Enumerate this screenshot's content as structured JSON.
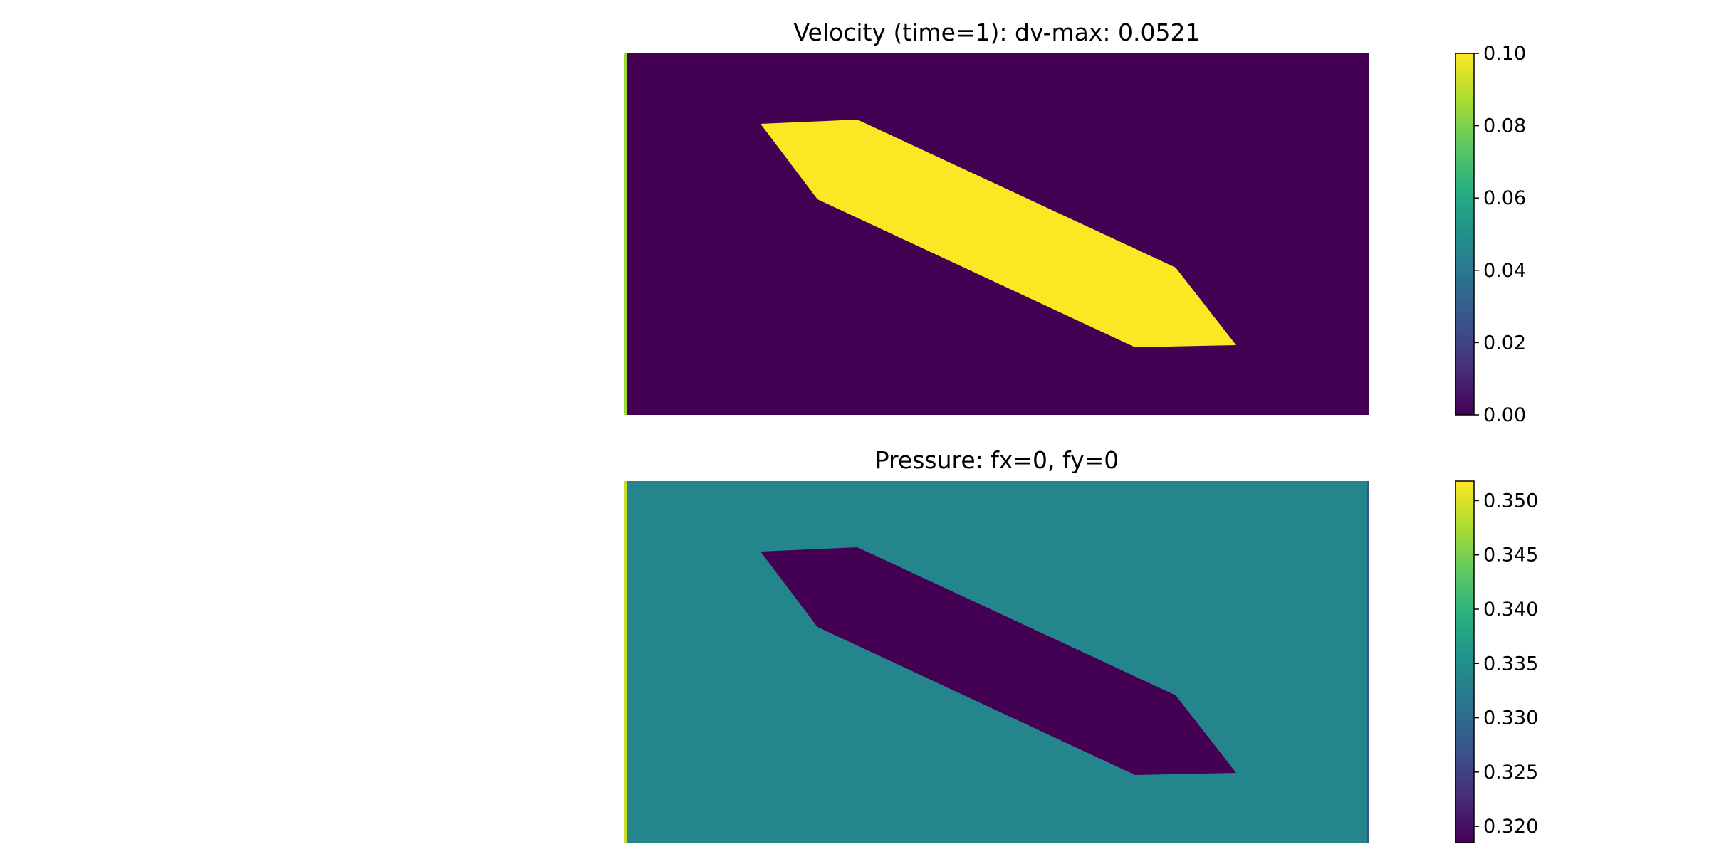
{
  "chart_data": [
    {
      "type": "heatmap",
      "title": "Velocity (time=1): dv-max: 0.0521",
      "colormap": "viridis",
      "field": {
        "background_value": 0.0,
        "obstacle_value": 0.1,
        "inlet_edge_value": 0.085
      },
      "colorbar": {
        "range": [
          0.0,
          0.1
        ],
        "ticks": [
          0.0,
          0.02,
          0.04,
          0.06,
          0.08,
          0.1
        ],
        "tick_labels": [
          "0.00",
          "0.02",
          "0.04",
          "0.06",
          "0.08",
          "0.10"
        ]
      }
    },
    {
      "type": "heatmap",
      "title": "Pressure: fx=0, fy=0",
      "colormap": "viridis",
      "field": {
        "background_value": 0.3335,
        "obstacle_value": 0.3185,
        "inlet_edge_value": 0.349,
        "outlet_edge_value": 0.327
      },
      "colorbar": {
        "range": [
          0.3185,
          0.3518
        ],
        "ticks": [
          0.32,
          0.325,
          0.33,
          0.335,
          0.34,
          0.345,
          0.35
        ],
        "tick_labels": [
          "0.320",
          "0.325",
          "0.330",
          "0.335",
          "0.340",
          "0.345",
          "0.350"
        ]
      }
    }
  ]
}
